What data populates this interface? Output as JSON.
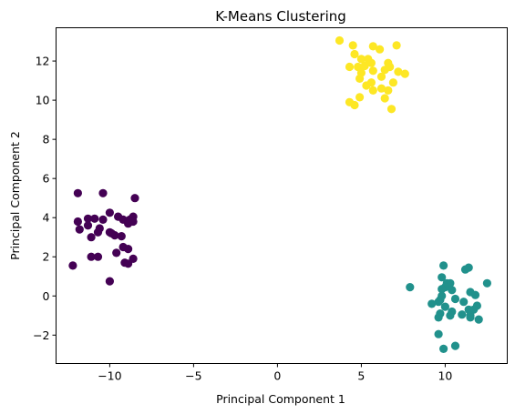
{
  "chart_data": {
    "type": "scatter",
    "title": "K-Means Clustering",
    "xlabel": "Principal Component 1",
    "ylabel": "Principal Component 2",
    "xlim": [
      -13.2,
      13.7
    ],
    "ylim": [
      -3.45,
      13.7
    ],
    "xticks": [
      -10,
      -5,
      0,
      5,
      10
    ],
    "yticks": [
      -2,
      0,
      2,
      4,
      6,
      8,
      10,
      12
    ],
    "grid": false,
    "legend": "none",
    "series": [
      {
        "color": "#440154",
        "points": [
          [
            -11.9,
            5.25
          ],
          [
            -10.4,
            5.25
          ],
          [
            -8.5,
            5.0
          ],
          [
            -11.3,
            3.95
          ],
          [
            -10.9,
            3.95
          ],
          [
            -10.4,
            3.9
          ],
          [
            -10.0,
            4.25
          ],
          [
            -9.5,
            4.05
          ],
          [
            -9.2,
            3.9
          ],
          [
            -8.8,
            3.9
          ],
          [
            -8.6,
            4.05
          ],
          [
            -8.9,
            3.7
          ],
          [
            -8.6,
            3.8
          ],
          [
            -11.9,
            3.8
          ],
          [
            -11.3,
            3.6
          ],
          [
            -10.6,
            3.45
          ],
          [
            -10.0,
            3.25
          ],
          [
            -9.7,
            3.1
          ],
          [
            -11.1,
            3.0
          ],
          [
            -10.7,
            3.25
          ],
          [
            -9.9,
            3.2
          ],
          [
            -9.3,
            3.05
          ],
          [
            -11.8,
            3.4
          ],
          [
            -9.6,
            2.2
          ],
          [
            -9.2,
            2.5
          ],
          [
            -8.9,
            2.4
          ],
          [
            -11.1,
            2.0
          ],
          [
            -10.7,
            2.0
          ],
          [
            -12.2,
            1.55
          ],
          [
            -8.6,
            1.9
          ],
          [
            -9.1,
            1.7
          ],
          [
            -8.9,
            1.65
          ],
          [
            -10.0,
            0.75
          ]
        ]
      },
      {
        "color": "#21918c",
        "points": [
          [
            9.9,
            1.55
          ],
          [
            11.4,
            1.45
          ],
          [
            11.2,
            1.35
          ],
          [
            9.8,
            0.95
          ],
          [
            7.9,
            0.45
          ],
          [
            10.1,
            0.65
          ],
          [
            10.3,
            0.65
          ],
          [
            12.5,
            0.65
          ],
          [
            10.0,
            0.45
          ],
          [
            9.8,
            0.35
          ],
          [
            10.4,
            0.3
          ],
          [
            11.5,
            0.2
          ],
          [
            11.8,
            0.05
          ],
          [
            9.8,
            0.0
          ],
          [
            10.6,
            -0.15
          ],
          [
            9.7,
            -0.2
          ],
          [
            9.6,
            -0.3
          ],
          [
            9.2,
            -0.4
          ],
          [
            11.1,
            -0.3
          ],
          [
            10.0,
            -0.55
          ],
          [
            11.4,
            -0.7
          ],
          [
            10.4,
            -0.8
          ],
          [
            11.9,
            -0.5
          ],
          [
            11.7,
            -0.7
          ],
          [
            9.7,
            -0.9
          ],
          [
            10.3,
            -1.0
          ],
          [
            11.0,
            -0.95
          ],
          [
            11.5,
            -1.0
          ],
          [
            9.6,
            -1.1
          ],
          [
            11.5,
            -1.1
          ],
          [
            12.0,
            -1.2
          ],
          [
            9.6,
            -1.95
          ],
          [
            10.6,
            -2.55
          ],
          [
            9.9,
            -2.7
          ]
        ]
      },
      {
        "color": "#fde725",
        "points": [
          [
            3.7,
            13.05
          ],
          [
            4.5,
            12.8
          ],
          [
            5.7,
            12.75
          ],
          [
            6.1,
            12.6
          ],
          [
            7.1,
            12.8
          ],
          [
            4.6,
            12.35
          ],
          [
            5.0,
            12.1
          ],
          [
            5.4,
            12.1
          ],
          [
            5.6,
            11.9
          ],
          [
            6.6,
            11.9
          ],
          [
            4.3,
            11.7
          ],
          [
            4.8,
            11.7
          ],
          [
            5.2,
            11.75
          ],
          [
            5.7,
            11.5
          ],
          [
            6.4,
            11.55
          ],
          [
            6.7,
            11.7
          ],
          [
            7.6,
            11.35
          ],
          [
            6.2,
            11.2
          ],
          [
            5.0,
            11.4
          ],
          [
            4.9,
            11.1
          ],
          [
            5.6,
            10.9
          ],
          [
            6.9,
            10.9
          ],
          [
            7.2,
            11.45
          ],
          [
            5.3,
            10.75
          ],
          [
            6.2,
            10.6
          ],
          [
            6.6,
            10.5
          ],
          [
            5.7,
            10.5
          ],
          [
            4.9,
            10.15
          ],
          [
            6.4,
            10.1
          ],
          [
            4.3,
            9.9
          ],
          [
            4.6,
            9.75
          ],
          [
            6.8,
            9.55
          ]
        ]
      }
    ]
  }
}
